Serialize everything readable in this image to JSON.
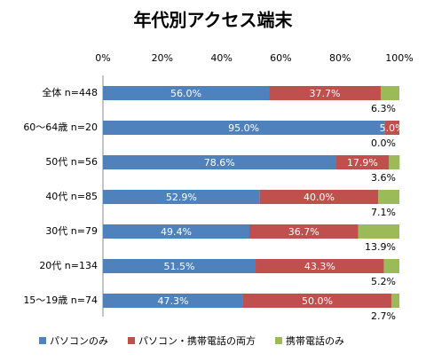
{
  "chart_data": {
    "type": "stacked-barh",
    "title": "年代別アクセス端末",
    "categories": [
      "全体 n=448",
      "60〜64歳 n=20",
      "50代 n=56",
      "40代 n=85",
      "30代 n=79",
      "20代 n=134",
      "15〜19歳 n=74"
    ],
    "series": [
      {
        "name": "パソコンのみ",
        "color": "#4f81bd",
        "values": [
          56.0,
          95.0,
          78.6,
          52.9,
          49.4,
          51.5,
          47.3
        ],
        "value_labels": [
          "56.0%",
          "95.0%",
          "78.6%",
          "52.9%",
          "49.4%",
          "51.5%",
          "47.3%"
        ]
      },
      {
        "name": "パソコン・携帯電話の両方",
        "color": "#c0504d",
        "values": [
          37.7,
          5.0,
          17.9,
          40.0,
          36.7,
          43.3,
          50.0
        ],
        "value_labels": [
          "37.7%",
          "5.0%",
          "17.9%",
          "40.0%",
          "36.7%",
          "43.3%",
          "50.0%"
        ]
      },
      {
        "name": "携帯電話のみ",
        "color": "#9bbb59",
        "values": [
          6.3,
          0.0,
          3.6,
          7.1,
          13.9,
          5.2,
          2.7
        ],
        "value_labels": [
          "6.3%",
          "0.0%",
          "3.6%",
          "7.1%",
          "13.9%",
          "5.2%",
          "2.7%"
        ]
      }
    ],
    "xlim": [
      0,
      100
    ],
    "xticks": [
      {
        "value": 0,
        "label": "0%"
      },
      {
        "value": 20,
        "label": "20%"
      },
      {
        "value": 40,
        "label": "40%"
      },
      {
        "value": 60,
        "label": "60%"
      },
      {
        "value": 80,
        "label": "80%"
      },
      {
        "value": 100,
        "label": "100%"
      }
    ],
    "grid": false,
    "legend": "bottom"
  }
}
